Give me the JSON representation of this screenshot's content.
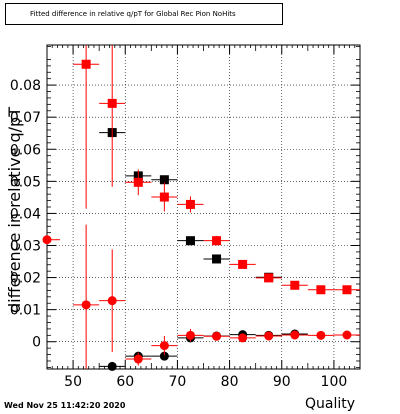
{
  "header": {
    "title": "Fitted difference in relative q/pT for Global Rec Pion NoHits",
    "timestamp": "Wed Nov 25 11:42:20 2020"
  },
  "chart_data": {
    "type": "scatter",
    "title": "Fitted difference in relative q/pT for Global Rec Pion NoHits",
    "xlabel": "Quality",
    "ylabel": "difference in relative q/pT",
    "xlim": [
      45,
      105
    ],
    "ylim": [
      -0.0085,
      0.0925
    ],
    "grid": true,
    "x_ticks": [
      "50",
      "60",
      "70",
      "80",
      "90",
      "100"
    ],
    "y_ticks": [
      "0",
      "0.01",
      "0.02",
      "0.03",
      "0.04",
      "0.05",
      "0.06",
      "0.07",
      "0.08"
    ],
    "colors": {
      "black": "#000000",
      "red": "#ff0000"
    },
    "series": [
      {
        "marker": "square",
        "color": "#000000",
        "points": [
          {
            "x": 57.5,
            "y": 0.0652,
            "xerr": 2.5,
            "yerr": 0.0
          },
          {
            "x": 62.5,
            "y": 0.0517,
            "xerr": 2.5,
            "yerr": 0.0
          },
          {
            "x": 67.5,
            "y": 0.0505,
            "xerr": 2.5,
            "yerr": 0.0
          },
          {
            "x": 72.5,
            "y": 0.0315,
            "xerr": 2.5,
            "yerr": 0.0
          },
          {
            "x": 77.5,
            "y": 0.0258,
            "xerr": 2.5,
            "yerr": 0.0
          },
          {
            "x": 87.5,
            "y": 0.0201,
            "xerr": 2.5,
            "yerr": 0.0
          }
        ]
      },
      {
        "marker": "square",
        "color": "#ff0000",
        "points": [
          {
            "x": 52.5,
            "y": 0.0865,
            "xerr": 2.5,
            "yerr": 0.045
          },
          {
            "x": 57.5,
            "y": 0.0743,
            "xerr": 2.5,
            "yerr": 0.026
          },
          {
            "x": 62.5,
            "y": 0.0497,
            "xerr": 2.5,
            "yerr": 0.004
          },
          {
            "x": 67.5,
            "y": 0.0451,
            "xerr": 2.5,
            "yerr": 0.0045
          },
          {
            "x": 72.5,
            "y": 0.0428,
            "xerr": 2.5,
            "yerr": 0.0025
          },
          {
            "x": 77.5,
            "y": 0.0315,
            "xerr": 2.5,
            "yerr": 0.0015
          },
          {
            "x": 82.5,
            "y": 0.0241,
            "xerr": 2.5,
            "yerr": 0.001
          },
          {
            "x": 87.5,
            "y": 0.0199,
            "xerr": 2.5,
            "yerr": 0.001
          },
          {
            "x": 92.5,
            "y": 0.0176,
            "xerr": 2.5,
            "yerr": 0.001
          },
          {
            "x": 97.5,
            "y": 0.0162,
            "xerr": 2.5,
            "yerr": 0.001
          },
          {
            "x": 102.5,
            "y": 0.0162,
            "xerr": 2.5,
            "yerr": 0.001
          }
        ]
      },
      {
        "marker": "circle",
        "color": "#000000",
        "points": [
          {
            "x": 57.5,
            "y": -0.0077,
            "xerr": 2.5,
            "yerr": 0.0
          },
          {
            "x": 62.5,
            "y": -0.0045,
            "xerr": 2.5,
            "yerr": 0.0
          },
          {
            "x": 67.5,
            "y": -0.0045,
            "xerr": 2.5,
            "yerr": 0.0
          },
          {
            "x": 72.5,
            "y": 0.0012,
            "xerr": 2.5,
            "yerr": 0.0
          },
          {
            "x": 77.5,
            "y": 0.0018,
            "xerr": 2.5,
            "yerr": 0.0
          },
          {
            "x": 82.5,
            "y": 0.0022,
            "xerr": 2.5,
            "yerr": 0.0
          },
          {
            "x": 87.5,
            "y": 0.002,
            "xerr": 2.5,
            "yerr": 0.0
          },
          {
            "x": 92.5,
            "y": 0.0024,
            "xerr": 2.5,
            "yerr": 0.0
          }
        ]
      },
      {
        "marker": "circle",
        "color": "#ff0000",
        "points": [
          {
            "x": 45.0,
            "y": 0.0318,
            "xerr": 2.5,
            "yerr": 0.0
          },
          {
            "x": 52.5,
            "y": 0.0115,
            "xerr": 2.5,
            "yerr": 0.025
          },
          {
            "x": 57.5,
            "y": 0.0128,
            "xerr": 2.5,
            "yerr": 0.016
          },
          {
            "x": 62.5,
            "y": -0.0054,
            "xerr": 2.5,
            "yerr": 0.002
          },
          {
            "x": 67.5,
            "y": -0.0012,
            "xerr": 2.5,
            "yerr": 0.003
          },
          {
            "x": 72.5,
            "y": 0.002,
            "xerr": 2.5,
            "yerr": 0.002
          },
          {
            "x": 77.5,
            "y": 0.0017,
            "xerr": 2.5,
            "yerr": 0.0012
          },
          {
            "x": 82.5,
            "y": 0.0012,
            "xerr": 2.5,
            "yerr": 0.001
          },
          {
            "x": 87.5,
            "y": 0.0018,
            "xerr": 2.5,
            "yerr": 0.001
          },
          {
            "x": 92.5,
            "y": 0.0021,
            "xerr": 2.5,
            "yerr": 0.001
          },
          {
            "x": 97.5,
            "y": 0.002,
            "xerr": 2.5,
            "yerr": 0.001
          },
          {
            "x": 102.5,
            "y": 0.0021,
            "xerr": 2.5,
            "yerr": 0.001
          }
        ]
      }
    ]
  }
}
